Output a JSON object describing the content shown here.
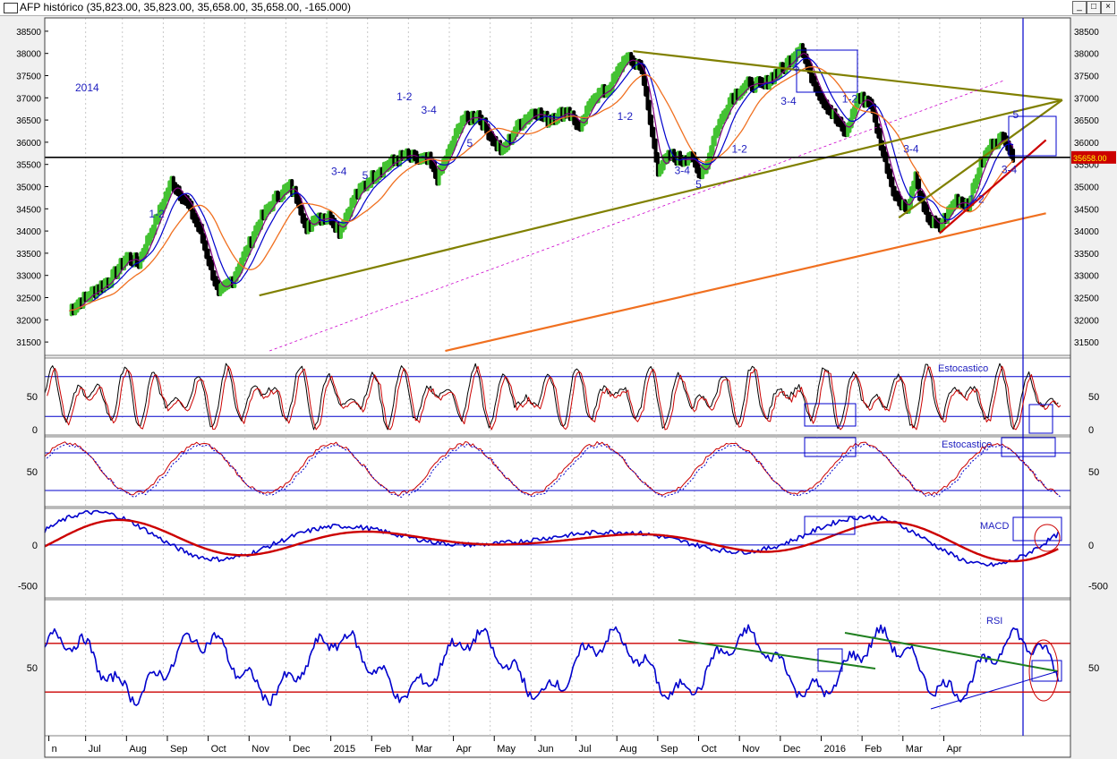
{
  "window": {
    "title": "AFP histórico (35,823.00, 35,823.00, 35,658.00, 35,658.00, -165.000)",
    "min_icon": "minimize-icon",
    "max_icon": "maximize-icon",
    "close_icon": "close-icon"
  },
  "colors": {
    "bg": "#ffffff",
    "grid": "#c8c8c8",
    "up": "#44c233",
    "down": "#000000",
    "olive": "#808000",
    "orange": "#f07020",
    "blue": "#0000cc",
    "purple": "#800080",
    "red": "#cc0000",
    "green": "#208020",
    "magenta": "#cc00cc",
    "label": "#2020c0"
  },
  "price_panel": {
    "ylim": [
      31200,
      38800
    ],
    "yticks": [
      31500,
      32000,
      32500,
      33000,
      33500,
      34000,
      34500,
      35000,
      35500,
      36000,
      36500,
      37000,
      37500,
      38000,
      38500
    ],
    "current_price": 35658,
    "current_price_label": "35658.00",
    "year_label": "2014",
    "wave_labels": [
      {
        "text": "1-2",
        "x": 1.07,
        "y": 34300
      },
      {
        "text": "3-4",
        "x": 3.3,
        "y": 35260
      },
      {
        "text": "5",
        "x": 3.62,
        "y": 35170
      },
      {
        "text": "1-2",
        "x": 4.1,
        "y": 36950
      },
      {
        "text": "3-4",
        "x": 4.4,
        "y": 36640
      },
      {
        "text": "5",
        "x": 4.9,
        "y": 35900
      },
      {
        "text": "1-2",
        "x": 6.8,
        "y": 36500
      },
      {
        "text": "3-4",
        "x": 7.5,
        "y": 35280
      },
      {
        "text": "5",
        "x": 7.7,
        "y": 34970
      },
      {
        "text": "1-2",
        "x": 8.2,
        "y": 35770
      },
      {
        "text": "5",
        "x": 8.9,
        "y": 37600
      },
      {
        "text": "3-4",
        "x": 8.8,
        "y": 36840
      },
      {
        "text": "1-2",
        "x": 9.55,
        "y": 36900
      },
      {
        "text": "3-4",
        "x": 10.3,
        "y": 35770
      },
      {
        "text": "1-2",
        "x": 11.1,
        "y": 34640
      },
      {
        "text": "5",
        "x": 11.58,
        "y": 36540
      },
      {
        "text": "3-4",
        "x": 11.5,
        "y": 35300
      }
    ]
  },
  "stoch1": {
    "label": "Estocastico",
    "yticks": [
      0,
      50
    ]
  },
  "stoch2": {
    "label": "Estocastico",
    "yticks": [
      50
    ]
  },
  "macd": {
    "label": "MACD",
    "yticks": [
      -500,
      0
    ],
    "ylim": [
      -650,
      450
    ]
  },
  "rsi": {
    "label": "RSI",
    "yticks": [
      50
    ],
    "ylim": [
      0,
      100
    ]
  },
  "chart_data": {
    "type": "line",
    "x_axis_labels": [
      "n",
      "Jul",
      "Aug",
      "Sep",
      "Oct",
      "Nov",
      "Dec",
      "2015",
      "Feb",
      "Mar",
      "Apr",
      "May",
      "Jun",
      "Jul",
      "Aug",
      "Sep",
      "Oct",
      "Nov",
      "Dec",
      "2016",
      "Feb",
      "Mar",
      "Apr"
    ],
    "x_axis_positions": [
      -0.5,
      0.4,
      1.4,
      2.4,
      3.4,
      4.4,
      5.4,
      6.4,
      7.4,
      8.4,
      9.4,
      10.4,
      11.4,
      12.4,
      13.4,
      14.4,
      15.4,
      16.4,
      17.4,
      18.4,
      19.4,
      20.4,
      21.4
    ],
    "price_close_keypoints": [
      [
        0,
        32200
      ],
      [
        0.4,
        32500
      ],
      [
        1.0,
        32900
      ],
      [
        1.4,
        33400
      ],
      [
        1.7,
        33300
      ],
      [
        2.1,
        34200
      ],
      [
        2.5,
        35100
      ],
      [
        2.9,
        34600
      ],
      [
        3.2,
        34000
      ],
      [
        3.45,
        33200
      ],
      [
        3.65,
        32600
      ],
      [
        4.0,
        32900
      ],
      [
        4.3,
        33500
      ],
      [
        4.7,
        34300
      ],
      [
        5.1,
        34800
      ],
      [
        5.4,
        35000
      ],
      [
        5.6,
        34700
      ],
      [
        5.8,
        34000
      ],
      [
        6.0,
        34300
      ],
      [
        6.4,
        34300
      ],
      [
        6.6,
        34000
      ],
      [
        7.0,
        34800
      ],
      [
        7.4,
        35200
      ],
      [
        7.8,
        35500
      ],
      [
        8.2,
        35700
      ],
      [
        8.6,
        35600
      ],
      [
        8.8,
        35600
      ],
      [
        9.0,
        35200
      ],
      [
        9.3,
        35800
      ],
      [
        9.6,
        36500
      ],
      [
        10.0,
        36600
      ],
      [
        10.4,
        36000
      ],
      [
        10.6,
        35800
      ],
      [
        11.0,
        36400
      ],
      [
        11.4,
        36700
      ],
      [
        11.7,
        36500
      ],
      [
        12.2,
        36700
      ],
      [
        12.5,
        36300
      ],
      [
        12.8,
        37000
      ],
      [
        13.2,
        37200
      ],
      [
        13.6,
        37900
      ],
      [
        14.0,
        37700
      ],
      [
        14.2,
        36500
      ],
      [
        14.4,
        35400
      ],
      [
        14.7,
        35700
      ],
      [
        15.0,
        35600
      ],
      [
        15.2,
        35700
      ],
      [
        15.4,
        35300
      ],
      [
        15.6,
        35500
      ],
      [
        15.8,
        36200
      ],
      [
        16.2,
        37000
      ],
      [
        16.6,
        37300
      ],
      [
        17.0,
        37300
      ],
      [
        17.5,
        37700
      ],
      [
        17.9,
        38150
      ],
      [
        18.1,
        37600
      ],
      [
        18.4,
        37000
      ],
      [
        18.7,
        36600
      ],
      [
        19.0,
        36200
      ],
      [
        19.3,
        37000
      ],
      [
        19.6,
        36900
      ],
      [
        19.9,
        35800
      ],
      [
        20.2,
        34800
      ],
      [
        20.5,
        34500
      ],
      [
        20.7,
        35200
      ],
      [
        20.9,
        34500
      ],
      [
        21.1,
        34200
      ],
      [
        21.3,
        34100
      ],
      [
        21.7,
        34700
      ],
      [
        22.0,
        34600
      ],
      [
        22.3,
        35500
      ],
      [
        22.6,
        36000
      ],
      [
        22.9,
        36100
      ],
      [
        23.1,
        35658
      ]
    ],
    "series": [
      {
        "name": "price"
      },
      {
        "name": "stochastic-fast"
      },
      {
        "name": "stochastic-slow"
      },
      {
        "name": "macd"
      },
      {
        "name": "macd-signal"
      },
      {
        "name": "rsi"
      }
    ],
    "trendlines": [
      {
        "color": "olive",
        "from": [
          4.65,
          32550
        ],
        "to": [
          24.3,
          36950
        ]
      },
      {
        "color": "olive",
        "from": [
          13.8,
          38050
        ],
        "to": [
          24.3,
          36950
        ]
      },
      {
        "color": "olive",
        "from": [
          20.3,
          34300
        ],
        "to": [
          24.3,
          36950
        ]
      },
      {
        "color": "orange",
        "from": [
          9.2,
          31300
        ],
        "to": [
          23.9,
          34400
        ]
      },
      {
        "color": "red",
        "from": [
          21.3,
          33950
        ],
        "to": [
          23.9,
          36050
        ]
      },
      {
        "color": "magenta",
        "from": [
          4.9,
          31300
        ],
        "to": [
          22.9,
          37400
        ]
      }
    ]
  }
}
